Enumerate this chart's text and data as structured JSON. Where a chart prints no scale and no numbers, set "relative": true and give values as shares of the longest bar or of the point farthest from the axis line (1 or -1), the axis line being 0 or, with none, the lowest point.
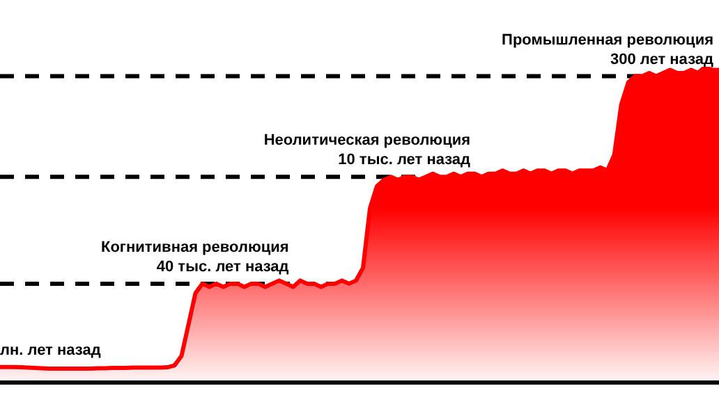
{
  "chart_data": {
    "type": "area",
    "relative": true,
    "categories": [
      null,
      null,
      null,
      null,
      null,
      null,
      null,
      null,
      null,
      null,
      null,
      null,
      null,
      null,
      null,
      null,
      null,
      null,
      null,
      null,
      null,
      null,
      null,
      null,
      null,
      null,
      null,
      null,
      null,
      null,
      null,
      null,
      null,
      null,
      null,
      null,
      null,
      null,
      null,
      null,
      null,
      null,
      null,
      null,
      null,
      null,
      null,
      null,
      null,
      null,
      null,
      null,
      null,
      null,
      null,
      null,
      null,
      null,
      null,
      null,
      null,
      null,
      null,
      null,
      null,
      null,
      null,
      null,
      null,
      null,
      null,
      null,
      null,
      null,
      null,
      null,
      null,
      null,
      null,
      null,
      null,
      null,
      null,
      null,
      null,
      null,
      null,
      null,
      null,
      null,
      null,
      null,
      null,
      null,
      null,
      null,
      null,
      null,
      null,
      null,
      null,
      null,
      null,
      null
    ],
    "series": [
      {
        "color": "#ff0000",
        "values": [
          0.045,
          0.045,
          0.045,
          0.044,
          0.043,
          0.042,
          0.041,
          0.04,
          0.04,
          0.04,
          0.04,
          0.04,
          0.04,
          0.04,
          0.041,
          0.041,
          0.042,
          0.042,
          0.042,
          0.043,
          0.043,
          0.043,
          0.043,
          0.043,
          0.044,
          0.05,
          0.08,
          0.18,
          0.28,
          0.31,
          0.3,
          0.31,
          0.3,
          0.31,
          0.31,
          0.3,
          0.31,
          0.31,
          0.3,
          0.31,
          0.32,
          0.31,
          0.3,
          0.32,
          0.31,
          0.31,
          0.3,
          0.31,
          0.31,
          0.32,
          0.31,
          0.32,
          0.36,
          0.55,
          0.62,
          0.64,
          0.65,
          0.64,
          0.65,
          0.65,
          0.64,
          0.65,
          0.66,
          0.65,
          0.65,
          0.66,
          0.65,
          0.66,
          0.66,
          0.65,
          0.66,
          0.66,
          0.67,
          0.66,
          0.66,
          0.67,
          0.66,
          0.67,
          0.67,
          0.66,
          0.67,
          0.67,
          0.66,
          0.67,
          0.67,
          0.67,
          0.68,
          0.67,
          0.72,
          0.88,
          0.95,
          0.97,
          0.97,
          0.98,
          0.97,
          0.98,
          0.99,
          0.98,
          0.98,
          0.99,
          0.98,
          1,
          0.99,
          0.99
        ]
      }
    ],
    "ref_lines": [
      {
        "axis": "y",
        "value": 0.31,
        "color": "#000000",
        "line_style": "dashed"
      },
      {
        "axis": "y",
        "value": 0.65,
        "color": "#000000",
        "line_style": "dashed"
      },
      {
        "axis": "y",
        "value": 0.97,
        "color": "#000000",
        "line_style": "dashed"
      }
    ],
    "annotations": [
      {
        "text": "лн. лет назад",
        "y": 0.045
      },
      {
        "text": "Когнитивная революция\n40 тыс. лет назад",
        "y": 0.31
      },
      {
        "text": "Неолитическая революция\n10 тыс. лет назад",
        "y": 0.65
      },
      {
        "text": "Промышленная революция\n300 лет назад",
        "y": 0.97
      }
    ],
    "legend": false,
    "marker": "none",
    "line_style": "solid"
  }
}
